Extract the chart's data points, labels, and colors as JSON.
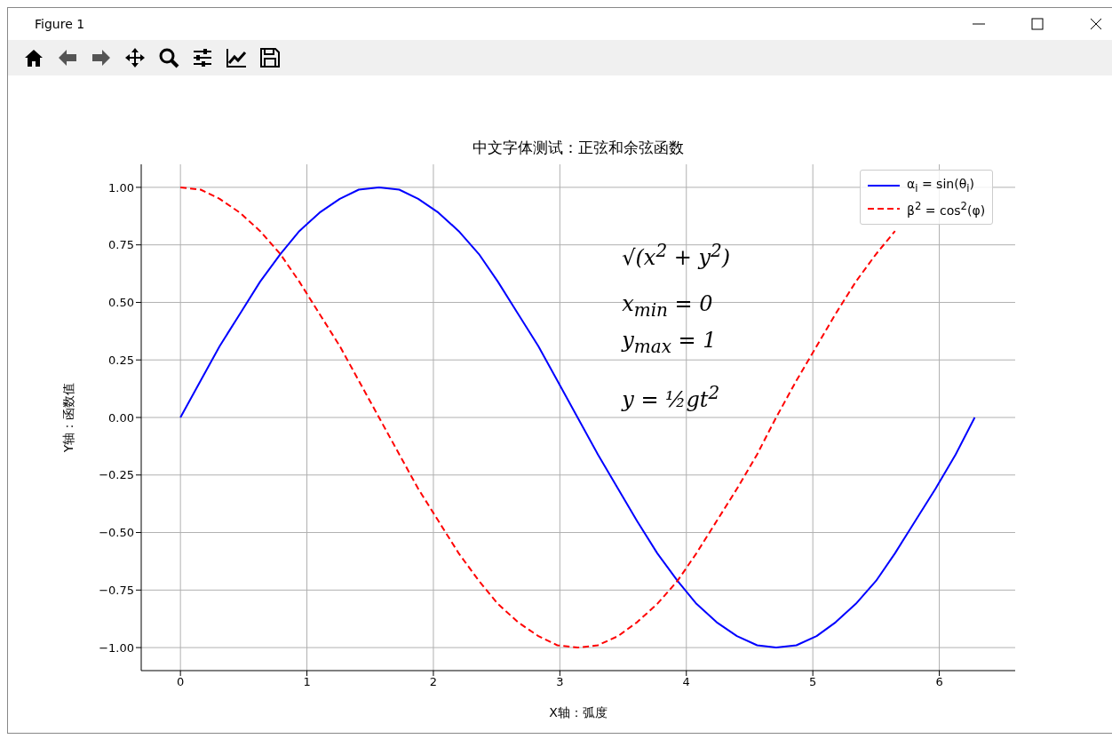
{
  "chart_data": {
    "type": "line",
    "title": "中文字体测试：正弦和余弦函数",
    "xlabel": "X轴：弧度",
    "ylabel": "Y轴：函数值",
    "annotations": [
      "Figure 1",
      "√(x$^{2}$ + y$^{2}$)",
      "x$_{min}$ = 0",
      "y$_{max}$ = 1",
      "y = ½gt$^{2}$"
    ],
    "x": [
      0,
      0.16,
      0.31,
      0.47,
      0.63,
      0.79,
      0.94,
      1.1,
      1.26,
      1.41,
      1.57,
      1.73,
      1.88,
      2.04,
      2.2,
      2.36,
      2.51,
      2.67,
      2.83,
      2.98,
      3.14,
      3.3,
      3.46,
      3.61,
      3.77,
      3.93,
      4.08,
      4.24,
      4.4,
      4.56,
      4.71,
      4.87,
      5.03,
      5.18,
      5.34,
      5.5,
      5.65,
      5.81,
      5.97,
      6.13,
      6.28
    ],
    "series": [
      {
        "name": "α$_{i}$ = sin(θ$_{i}$)",
        "color": "#0000ff",
        "line_style": "solid",
        "values": [
          0,
          0.16,
          0.31,
          0.45,
          0.59,
          0.71,
          0.81,
          0.89,
          0.95,
          0.99,
          1,
          0.99,
          0.95,
          0.89,
          0.81,
          0.71,
          0.59,
          0.45,
          0.31,
          0.16,
          0,
          -0.16,
          -0.31,
          -0.45,
          -0.59,
          -0.71,
          -0.81,
          -0.89,
          -0.95,
          -0.99,
          -1,
          -0.99,
          -0.95,
          -0.89,
          -0.81,
          -0.71,
          -0.59,
          -0.45,
          -0.31,
          -0.16,
          0
        ]
      },
      {
        "name": "β$^{2}$ = cos$^{2}$(φ)",
        "color": "#ff0000",
        "line_style": "dashed",
        "values": [
          1,
          0.99,
          0.95,
          0.89,
          0.81,
          0.71,
          0.59,
          0.45,
          0.31,
          0.16,
          0,
          -0.16,
          -0.31,
          -0.45,
          -0.59,
          -0.71,
          -0.81,
          -0.89,
          -0.95,
          -0.99,
          -1,
          -0.99,
          -0.95,
          -0.89,
          -0.81,
          -0.71,
          -0.59,
          -0.45,
          -0.31,
          -0.16,
          0,
          0.16,
          0.31,
          0.45,
          0.59,
          0.71,
          0.81,
          null,
          null,
          null,
          null
        ]
      }
    ],
    "xlim": [
      -0.31,
      6.6
    ],
    "xticks": [
      0,
      1,
      2,
      3,
      4,
      5,
      6
    ],
    "ylim": [
      -1.1,
      1.1
    ],
    "yticks": [
      {
        "value": -1,
        "label": "−1.00"
      },
      {
        "value": -0.75,
        "label": "−0.75"
      },
      {
        "value": -0.5,
        "label": "−0.50"
      },
      {
        "value": -0.25,
        "label": "−0.25"
      },
      {
        "value": 0,
        "label": "0.00"
      },
      {
        "value": 0.25,
        "label": "0.25"
      },
      {
        "value": 0.5,
        "label": "0.50"
      },
      {
        "value": 0.75,
        "label": "0.75"
      },
      {
        "value": 1,
        "label": "1.00"
      }
    ],
    "grid": true,
    "legend": "top right",
    "marker": "none"
  }
}
